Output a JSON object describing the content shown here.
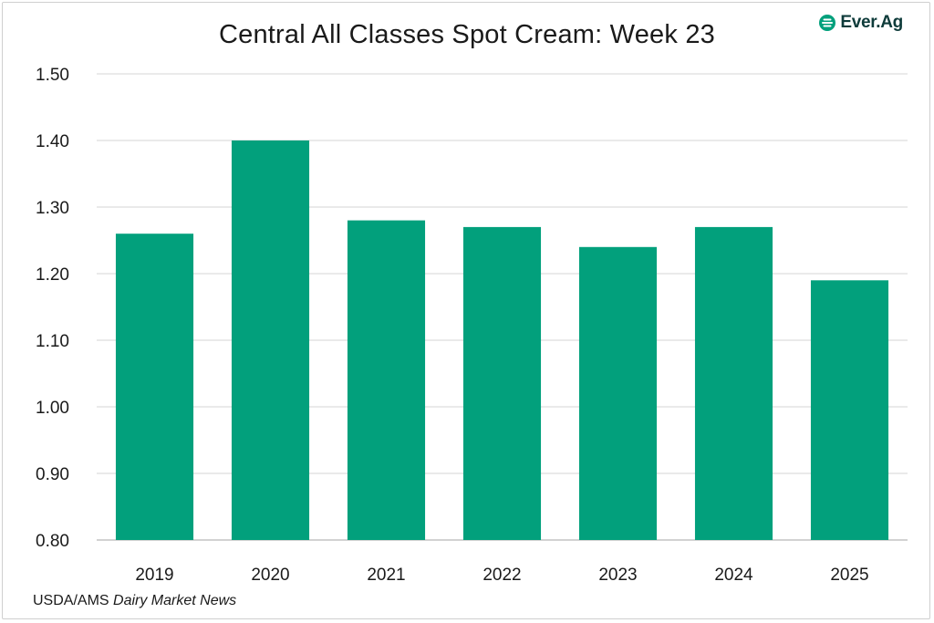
{
  "chart_data": {
    "type": "bar",
    "title": "Central All Classes Spot Cream: Week 23",
    "categories": [
      "2019",
      "2020",
      "2021",
      "2022",
      "2023",
      "2024",
      "2025"
    ],
    "values": [
      1.26,
      1.4,
      1.28,
      1.27,
      1.24,
      1.27,
      1.19
    ],
    "xlabel": "",
    "ylabel": "",
    "ylim": [
      0.8,
      1.5
    ],
    "yticks": [
      "0.80",
      "0.90",
      "1.00",
      "1.10",
      "1.20",
      "1.30",
      "1.40",
      "1.50"
    ],
    "grid": true,
    "legend": "none",
    "bar_color": "#02a07c"
  },
  "source": {
    "prefix": "USDA/AMS ",
    "publication": "Dairy Market News"
  },
  "logo": {
    "text": "Ever.Ag",
    "icon": "ever-ag-logo-icon",
    "color": "#0e3b3a",
    "accent": "#02a07c"
  }
}
